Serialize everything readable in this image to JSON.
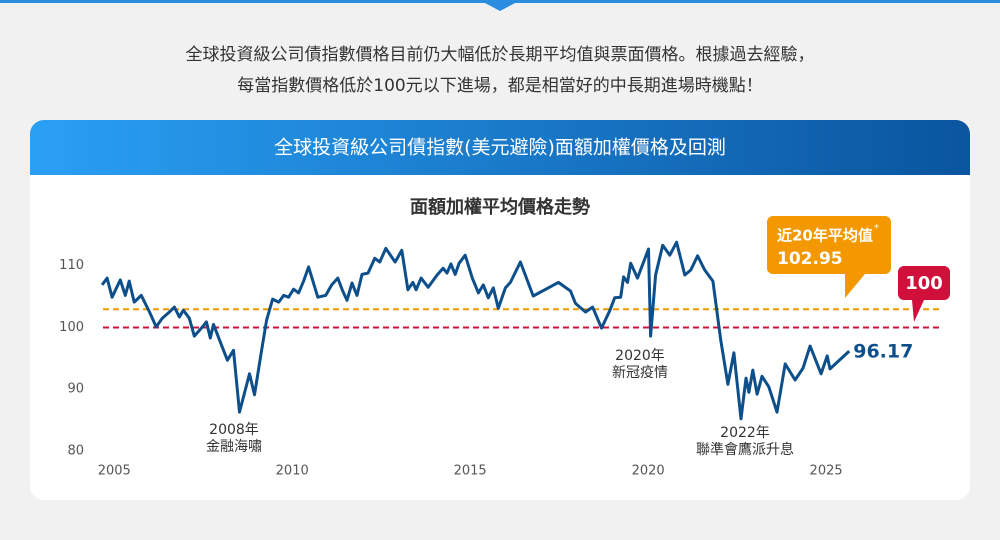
{
  "intro": [
    "全球投資級公司債指數價格目前仍大幅低於長期平均值與票面價格。根據過去經驗，",
    "每當指數價格低於100元以下進場，都是相當好的中長期進場時機點！"
  ],
  "panel_title": "全球投資級公司債指數(美元避險)面額加權價格及回測",
  "chart_data": {
    "type": "line",
    "title": "面額加權平均價格走勢",
    "color": "#0d4f8b",
    "x": [
      2004.66,
      2004.8,
      2004.94,
      2005.17,
      2005.31,
      2005.42,
      2005.56,
      2005.76,
      2005.99,
      2006.18,
      2006.35,
      2006.55,
      2006.69,
      2006.83,
      2006.94,
      2007.11,
      2007.25,
      2007.48,
      2007.59,
      2007.7,
      2007.79,
      2008.01,
      2008.18,
      2008.35,
      2008.52,
      2008.8,
      2008.94,
      2009.14,
      2009.28,
      2009.45,
      2009.62,
      2009.76,
      2009.9,
      2010.04,
      2010.18,
      2010.32,
      2010.46,
      2010.72,
      2010.94,
      2011.11,
      2011.28,
      2011.42,
      2011.54,
      2011.68,
      2011.82,
      2011.96,
      2012.13,
      2012.32,
      2012.46,
      2012.63,
      2012.89,
      2013.08,
      2013.25,
      2013.39,
      2013.48,
      2013.62,
      2013.82,
      2014.07,
      2014.24,
      2014.35,
      2014.46,
      2014.58,
      2014.69,
      2014.86,
      2015.06,
      2015.23,
      2015.37,
      2015.51,
      2015.65,
      2015.79,
      2015.99,
      2016.13,
      2016.41,
      2016.77,
      2017.48,
      2017.82,
      2017.96,
      2018.24,
      2018.44,
      2018.69,
      2018.92,
      2019.06,
      2019.23,
      2019.31,
      2019.42,
      2019.51,
      2019.7,
      2020.01,
      2020.07,
      2020.21,
      2020.41,
      2020.61,
      2020.8,
      2021.03,
      2021.2,
      2021.39,
      2021.59,
      2021.82,
      2022.04,
      2022.24,
      2022.41,
      2022.61,
      2022.75,
      2022.83,
      2022.94,
      2023.06,
      2023.2,
      2023.39,
      2023.62,
      2023.85,
      2024.13,
      2024.35,
      2024.55,
      2024.86,
      2025.03,
      2025.11,
      2025.65
    ],
    "values": [
      106.9,
      108.0,
      104.9,
      107.7,
      105.2,
      107.5,
      104.1,
      105.2,
      102.5,
      100.1,
      101.5,
      102.5,
      103.3,
      101.7,
      102.8,
      101.5,
      98.6,
      100.1,
      100.9,
      98.3,
      100.5,
      97.2,
      94.7,
      96.3,
      86.3,
      92.5,
      89.1,
      96.3,
      101.2,
      104.6,
      104.1,
      105.2,
      104.9,
      106.2,
      105.6,
      107.5,
      109.8,
      104.9,
      105.2,
      106.9,
      108.0,
      105.9,
      104.4,
      107.2,
      105.2,
      108.6,
      108.8,
      111.2,
      110.6,
      112.8,
      110.6,
      112.5,
      106.1,
      107.3,
      106.1,
      108.0,
      106.5,
      108.5,
      109.6,
      108.8,
      110.3,
      108.6,
      110.4,
      111.7,
      108.0,
      105.6,
      106.9,
      104.8,
      106.4,
      103.1,
      106.4,
      107.3,
      110.6,
      105.1,
      107.3,
      105.9,
      103.9,
      102.5,
      103.3,
      99.9,
      102.7,
      104.8,
      104.9,
      108.2,
      107.3,
      110.4,
      108.0,
      112.7,
      98.6,
      108.5,
      113.3,
      111.7,
      113.8,
      108.5,
      109.3,
      111.6,
      109.3,
      107.5,
      98.0,
      90.8,
      95.9,
      85.2,
      91.8,
      89.5,
      93.1,
      89.2,
      92.1,
      90.4,
      86.3,
      94.1,
      91.5,
      93.4,
      97.0,
      92.5,
      95.4,
      93.3,
      96.17
    ],
    "xlim": [
      2004.6,
      2028.2
    ],
    "xticks": [
      2005,
      2010,
      2015,
      2020,
      2025
    ],
    "ylim": [
      80,
      114
    ],
    "yticks": [
      80,
      90,
      100,
      110
    ],
    "reference_lines": [
      {
        "value": 102.95,
        "label": "近20年平均值",
        "footnote_mark": "*",
        "color": "#f39800"
      },
      {
        "value": 100,
        "color": "#d0103a"
      }
    ],
    "annotations": [
      [
        "2008年",
        "金融海嘯"
      ],
      [
        "2020年",
        "新冠疫情"
      ],
      [
        "2022年",
        "聯準會鷹派升息"
      ]
    ]
  }
}
